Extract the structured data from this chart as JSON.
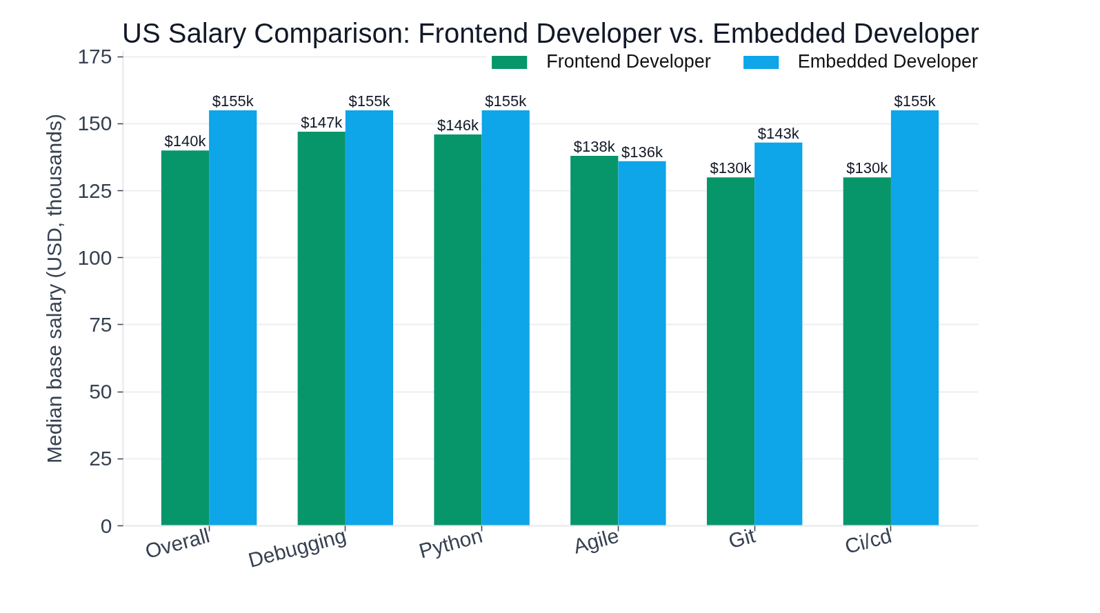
{
  "chart_data": {
    "type": "bar",
    "title": "US Salary Comparison: Frontend Developer vs. Embedded Developer",
    "ylabel": "Median base salary (USD, thousands)",
    "categories": [
      "Overall",
      "Debugging",
      "Python",
      "Agile",
      "Git",
      "Ci/cd"
    ],
    "series": [
      {
        "name": "Frontend Developer",
        "color": "#079669",
        "values": [
          140,
          147,
          146,
          138,
          130,
          130
        ],
        "value_labels": [
          "$140k",
          "$147k",
          "$146k",
          "$138k",
          "$130k",
          "$130k"
        ]
      },
      {
        "name": "Embedded Developer",
        "color": "#0ea5e9",
        "values": [
          155,
          155,
          155,
          136,
          143,
          155
        ],
        "value_labels": [
          "$155k",
          "$155k",
          "$155k",
          "$136k",
          "$143k",
          "$155k"
        ]
      }
    ],
    "ylim": [
      0,
      177
    ],
    "yticks": [
      0,
      25,
      50,
      75,
      100,
      125,
      150,
      175
    ],
    "grid": "y",
    "legend": "top right"
  }
}
